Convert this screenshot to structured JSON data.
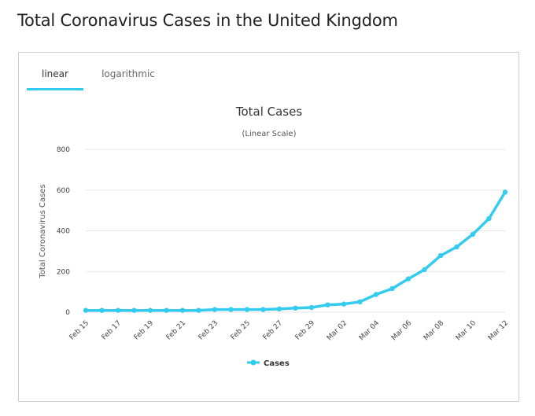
{
  "page": {
    "title": "Total Coronavirus Cases in the United Kingdom"
  },
  "tabs": [
    {
      "label": "linear",
      "active": true
    },
    {
      "label": "logarithmic",
      "active": false
    }
  ],
  "colors": {
    "series": "#33ccee",
    "tab_underline": "#33ccee",
    "grid": "#e6e6e6"
  },
  "chart_data": {
    "type": "line",
    "title": "Total Cases",
    "subtitle": "(Linear Scale)",
    "ylabel": "Total Coronavirus Cases",
    "xlabel": "",
    "ylim": [
      0,
      800
    ],
    "yticks": [
      0,
      200,
      400,
      600,
      800
    ],
    "grid": true,
    "legend_position": "bottom-center",
    "x": [
      "Feb 15",
      "Feb 16",
      "Feb 17",
      "Feb 18",
      "Feb 19",
      "Feb 20",
      "Feb 21",
      "Feb 22",
      "Feb 23",
      "Feb 24",
      "Feb 25",
      "Feb 26",
      "Feb 27",
      "Feb 28",
      "Feb 29",
      "Mar 01",
      "Mar 02",
      "Mar 03",
      "Mar 04",
      "Mar 05",
      "Mar 06",
      "Mar 07",
      "Mar 08",
      "Mar 09",
      "Mar 10",
      "Mar 11",
      "Mar 12"
    ],
    "xtick_labels": [
      "Feb 15",
      "Feb 17",
      "Feb 19",
      "Feb 21",
      "Feb 23",
      "Feb 25",
      "Feb 27",
      "Feb 29",
      "Mar 02",
      "Mar 04",
      "Mar 06",
      "Mar 08",
      "Mar 10",
      "Mar 12"
    ],
    "series": [
      {
        "name": "Cases",
        "values": [
          9,
          9,
          9,
          9,
          9,
          9,
          9,
          9,
          13,
          13,
          13,
          13,
          16,
          20,
          23,
          36,
          40,
          51,
          87,
          116,
          164,
          209,
          278,
          321,
          383,
          460,
          590
        ]
      }
    ]
  }
}
